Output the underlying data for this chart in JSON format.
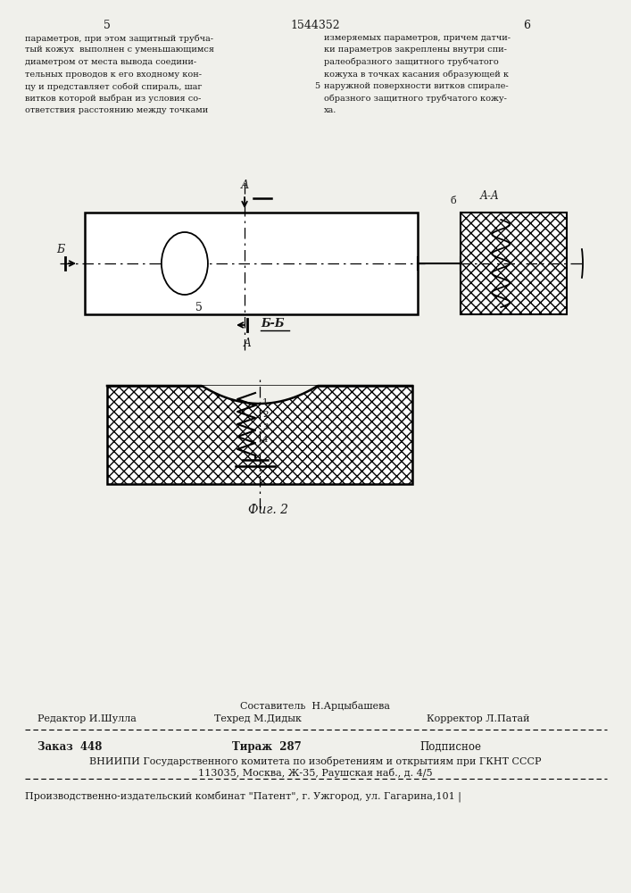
{
  "page_width": 7.07,
  "page_height": 10.0,
  "bg_color": "#f0f0eb",
  "text_color": "#1a1a1a",
  "page_num_left": "5",
  "page_num_center": "1544352",
  "page_num_right": "6",
  "col1_text": [
    "параметров, при этом защитный трубча-",
    "тый кожух  выполнен с уменьшающимся",
    "диаметром от места вывода соедини-",
    "тельных проводов к его входному кон-",
    "цу и представляет собой спираль, шаг",
    "витков которой выбран из условия со-",
    "ответствия расстоянию между точками"
  ],
  "col2_text": [
    "измеряемых параметров, причем датчи-",
    "ки параметров закреплены внутри спи-",
    "ралеобразного защитного трубчатого",
    "кожуха в точках касания образующей к",
    "наружной поверхности витков спирале-",
    "образного защитного трубчатого кожу-",
    "ха."
  ],
  "col1_ref": "5",
  "fig_caption": "Фиг. 2",
  "footer_line1_center": "Составитель  Н.Арцыбашева",
  "footer_line2_left": "Редактор И.Шулла",
  "footer_line2_center": "Техред М.Дидык",
  "footer_line2_right": "Корректор Л.Патай",
  "footer_line3_left": "Заказ  448",
  "footer_line3_center": "Тираж  287",
  "footer_line3_right": "Подписное",
  "footer_line4": "ВНИИПИ Государственного комитета по изобретениям и открытиям при ГКНТ СССР",
  "footer_line5": "113035, Москва, Ж-35, Раушская наб., д. 4/5",
  "footer_line6": "Производственно-издательский комбинат \"Патент\", г. Ужгород, ул. Гагарина,101 |"
}
